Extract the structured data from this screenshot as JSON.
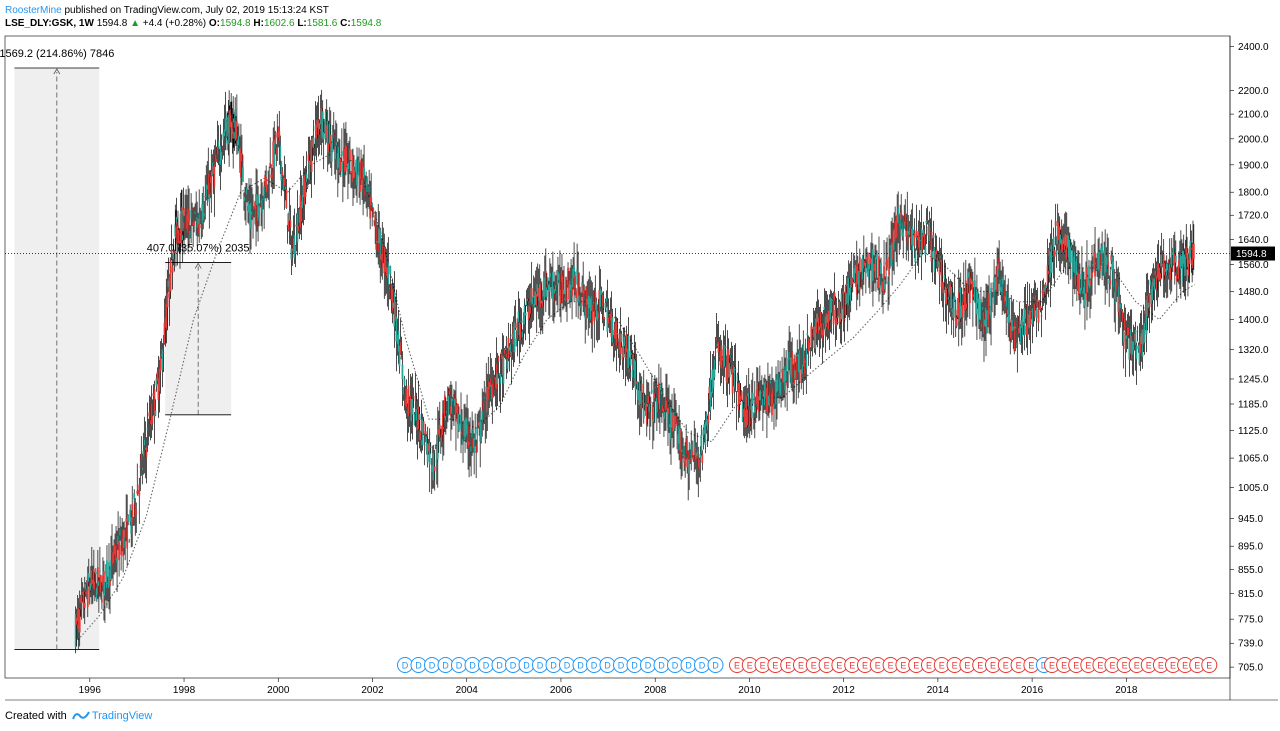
{
  "header": {
    "author": "RoosterMine",
    "published": " published on TradingView.com, July 02, 2019 15:13:24 KST",
    "symbol": "LSE_DLY:GSK, 1W",
    "last": "1594.8",
    "change": "+4.4 (+0.28%)",
    "o_label": "O:",
    "o": "1594.8",
    "h_label": "H:",
    "h": "1602.6",
    "l_label": "L:",
    "l": "1581.6",
    "c_label": "C:",
    "c": "1594.8"
  },
  "footer": {
    "created_with": "Created with",
    "brand": "TradingView"
  },
  "colors": {
    "up_candle": "#26a69a",
    "down_candle": "#e53935",
    "wick": "#000000",
    "dividend_badge": "#2196f3",
    "earnings_badge": "#e53935",
    "measure_box": "#efefef",
    "price_tag": "#000000"
  },
  "chart_data": {
    "type": "line",
    "title": "",
    "xlabel": "",
    "ylabel": "",
    "y_scale": "log",
    "ylim": [
      690,
      2450
    ],
    "xlim": [
      1994.2,
      2020.2
    ],
    "y_ticks": [
      "2400.0",
      "2200.0",
      "2100.0",
      "2000.0",
      "1900.0",
      "1800.0",
      "1720.0",
      "1640.0",
      "1560.0",
      "1480.0",
      "1400.0",
      "1320.0",
      "1245.0",
      "1185.0",
      "1125.0",
      "1065.0",
      "1005.0",
      "945.0",
      "895.0",
      "855.0",
      "815.0",
      "775.0",
      "739.0",
      "705.0"
    ],
    "x_ticks": [
      "1996",
      "1998",
      "2000",
      "2002",
      "2004",
      "2006",
      "2008",
      "2010",
      "2012",
      "2014",
      "2016",
      "2018"
    ],
    "current_price_label": "1594.8",
    "series": [
      {
        "kind": "candles",
        "x": [
          1995.7,
          1996.0,
          1996.3,
          1996.6,
          1996.9,
          1997.2,
          1997.5,
          1997.8,
          1998.0,
          1998.3,
          1998.6,
          1998.9,
          1999.1,
          1999.4,
          1999.7,
          2000.0,
          2000.3,
          2000.6,
          2000.9,
          2001.2,
          2001.5,
          2001.8,
          2002.1,
          2002.4,
          2002.7,
          2003.0,
          2003.3,
          2003.6,
          2003.9,
          2004.2,
          2004.5,
          2004.8,
          2005.1,
          2005.4,
          2005.7,
          2006.0,
          2006.3,
          2006.6,
          2006.9,
          2007.2,
          2007.5,
          2007.8,
          2008.1,
          2008.4,
          2008.7,
          2009.0,
          2009.3,
          2009.6,
          2009.9,
          2010.2,
          2010.5,
          2010.8,
          2011.1,
          2011.4,
          2011.7,
          2012.0,
          2012.3,
          2012.6,
          2012.9,
          2013.2,
          2013.5,
          2013.8,
          2014.1,
          2014.4,
          2014.7,
          2015.0,
          2015.3,
          2015.6,
          2015.9,
          2016.2,
          2016.5,
          2016.8,
          2017.1,
          2017.4,
          2017.7,
          2018.0,
          2018.3,
          2018.6,
          2018.9,
          2019.2,
          2019.45
        ],
        "y": [
          760,
          830,
          830,
          890,
          940,
          1100,
          1260,
          1650,
          1700,
          1700,
          1850,
          2050,
          2050,
          1700,
          1800,
          2000,
          1600,
          1850,
          2100,
          1950,
          1900,
          1850,
          1650,
          1500,
          1200,
          1150,
          1050,
          1200,
          1130,
          1090,
          1230,
          1280,
          1380,
          1450,
          1500,
          1490,
          1510,
          1430,
          1440,
          1350,
          1300,
          1160,
          1200,
          1130,
          1060,
          1080,
          1320,
          1270,
          1160,
          1200,
          1200,
          1270,
          1280,
          1370,
          1420,
          1440,
          1530,
          1560,
          1520,
          1720,
          1620,
          1650,
          1520,
          1420,
          1500,
          1380,
          1550,
          1350,
          1400,
          1450,
          1650,
          1600,
          1480,
          1600,
          1540,
          1340,
          1320,
          1530,
          1560,
          1560,
          1594.8
        ]
      },
      {
        "kind": "moving_average",
        "style": "dotted",
        "x": [
          1995.7,
          1996.2,
          1996.7,
          1997.2,
          1997.7,
          1998.2,
          1998.7,
          1999.2,
          1999.7,
          2000.2,
          2000.7,
          2001.2,
          2001.7,
          2002.2,
          2002.7,
          2003.2,
          2003.7,
          2004.2,
          2004.7,
          2005.2,
          2005.7,
          2006.2,
          2006.7,
          2007.2,
          2007.7,
          2008.2,
          2008.7,
          2009.2,
          2009.7,
          2010.2,
          2010.7,
          2011.2,
          2011.7,
          2012.2,
          2012.7,
          2013.2,
          2013.7,
          2014.2,
          2014.7,
          2015.2,
          2015.7,
          2016.2,
          2016.7,
          2017.2,
          2017.7,
          2018.2,
          2018.7,
          2019.2,
          2019.45
        ],
        "y": [
          740,
          780,
          840,
          950,
          1150,
          1400,
          1600,
          1800,
          1850,
          1800,
          1900,
          1950,
          1900,
          1650,
          1350,
          1150,
          1150,
          1130,
          1180,
          1300,
          1400,
          1450,
          1450,
          1400,
          1300,
          1200,
          1120,
          1100,
          1180,
          1200,
          1200,
          1250,
          1300,
          1350,
          1420,
          1500,
          1600,
          1550,
          1480,
          1480,
          1450,
          1450,
          1550,
          1550,
          1550,
          1450,
          1400,
          1480,
          1500
        ]
      }
    ],
    "annotations": [
      {
        "kind": "measure",
        "label": "1569.2 (214.86%) 7846",
        "x_from": 1994.4,
        "x_to": 1996.2,
        "y_from": 730,
        "y_to": 2300
      },
      {
        "kind": "measure",
        "label": "407.0 (35.07%) 2035",
        "x_from": 1997.6,
        "x_to": 1999.0,
        "y_from": 1160,
        "y_to": 1567
      },
      {
        "kind": "hline",
        "style": "dotted",
        "y": 1594.8
      }
    ],
    "events": {
      "dividend_label": "D",
      "earnings_label": "E",
      "dividend_count": 24,
      "earnings_count": 24,
      "dividend_count_2": 1,
      "earnings_count_2": 14
    }
  }
}
